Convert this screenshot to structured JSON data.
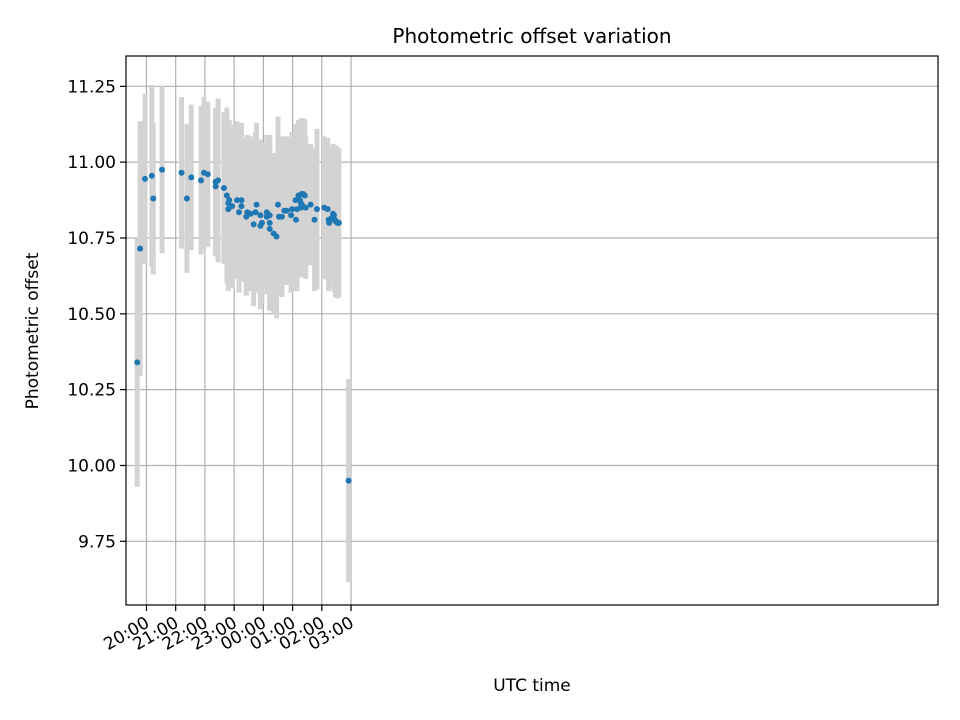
{
  "chart_data": {
    "type": "scatter",
    "title": "Photometric offset variation",
    "xlabel": "UTC time",
    "ylabel": "Photometric offset",
    "grid": true,
    "x_unit": "UTC time (HH:MM, night spanning midnight)",
    "xlim": [
      "19:18",
      "23:05+1"
    ],
    "ylim": [
      9.54,
      11.35
    ],
    "x_ticks": [
      "20:00",
      "21:00",
      "22:00",
      "23:00",
      "00:00",
      "01:00",
      "02:00",
      "03:00"
    ],
    "y_ticks": [
      "9.75",
      "10.00",
      "10.25",
      "10.50",
      "10.75",
      "11.00",
      "11.25"
    ],
    "colors": {
      "point": "#1f77b4",
      "errorbar": "#d3d3d3",
      "grid": "#b0b0b0"
    },
    "series": [
      {
        "x": [
          "19:41",
          "19:47",
          "19:57",
          "20:11",
          "20:14",
          "20:32",
          "21:12",
          "21:23",
          "21:32",
          "21:52",
          "21:58",
          "22:06",
          "22:22",
          "22:22",
          "22:27",
          "22:39",
          "22:45",
          "22:48",
          "22:48",
          "22:50",
          "22:56",
          "23:06",
          "23:10",
          "23:15",
          "23:15",
          "23:25",
          "23:27",
          "23:34",
          "23:40",
          "23:44",
          "23:46",
          "23:54",
          "23:54",
          "23:57",
          "00:07",
          "00:07",
          "00:13",
          "00:13",
          "00:13",
          "00:21",
          "00:27",
          "00:30",
          "00:32",
          "00:38",
          "00:43",
          "00:48",
          "00:57",
          "00:59",
          "01:06",
          "01:07",
          "01:09",
          "01:12",
          "01:15",
          "01:17",
          "01:17",
          "01:19",
          "01:19",
          "01:22",
          "01:25",
          "01:27",
          "01:37",
          "01:45",
          "01:50",
          "02:05",
          "02:12",
          "02:14",
          "02:15",
          "02:20",
          "02:21",
          "02:23",
          "02:25",
          "02:26",
          "02:28",
          "02:29",
          "02:32",
          "02:35",
          "02:55"
        ],
        "y": [
          10.34,
          10.715,
          10.945,
          10.955,
          10.88,
          10.975,
          10.965,
          10.88,
          10.95,
          10.94,
          10.965,
          10.96,
          10.935,
          10.92,
          10.94,
          10.915,
          10.89,
          10.845,
          10.865,
          10.875,
          10.855,
          10.875,
          10.835,
          10.875,
          10.855,
          10.82,
          10.835,
          10.83,
          10.795,
          10.835,
          10.86,
          10.825,
          10.79,
          10.8,
          10.82,
          10.835,
          10.825,
          10.8,
          10.78,
          10.765,
          10.755,
          10.86,
          10.82,
          10.82,
          10.84,
          10.84,
          10.825,
          10.845,
          10.875,
          10.81,
          10.845,
          10.89,
          10.875,
          10.865,
          10.85,
          10.895,
          10.86,
          10.895,
          10.89,
          10.85,
          10.86,
          10.81,
          10.845,
          10.85,
          10.845,
          10.81,
          10.8,
          10.815,
          10.815,
          10.83,
          10.825,
          10.81,
          10.805,
          10.805,
          10.8,
          10.8,
          9.95
        ],
        "yerr": [
          0.41,
          0.42,
          0.28,
          0.3,
          0.25,
          0.275,
          0.25,
          0.245,
          0.24,
          0.245,
          0.25,
          0.24,
          0.245,
          0.23,
          0.27,
          0.25,
          0.29,
          0.27,
          0.27,
          0.265,
          0.27,
          0.26,
          0.265,
          0.255,
          0.25,
          0.26,
          0.255,
          0.255,
          0.27,
          0.265,
          0.27,
          0.25,
          0.275,
          0.265,
          0.255,
          0.255,
          0.26,
          0.29,
          0.26,
          0.265,
          0.27,
          0.29,
          0.26,
          0.265,
          0.245,
          0.245,
          0.255,
          0.255,
          0.25,
          0.235,
          0.27,
          0.25,
          0.24,
          0.23,
          0.215,
          0.25,
          0.24,
          0.25,
          0.25,
          0.235,
          0.2,
          0.235,
          0.265,
          0.235,
          0.235,
          0.235,
          0.22,
          0.22,
          0.21,
          0.23,
          0.23,
          0.24,
          0.25,
          0.25,
          0.25,
          0.245,
          0.335
        ]
      }
    ]
  }
}
